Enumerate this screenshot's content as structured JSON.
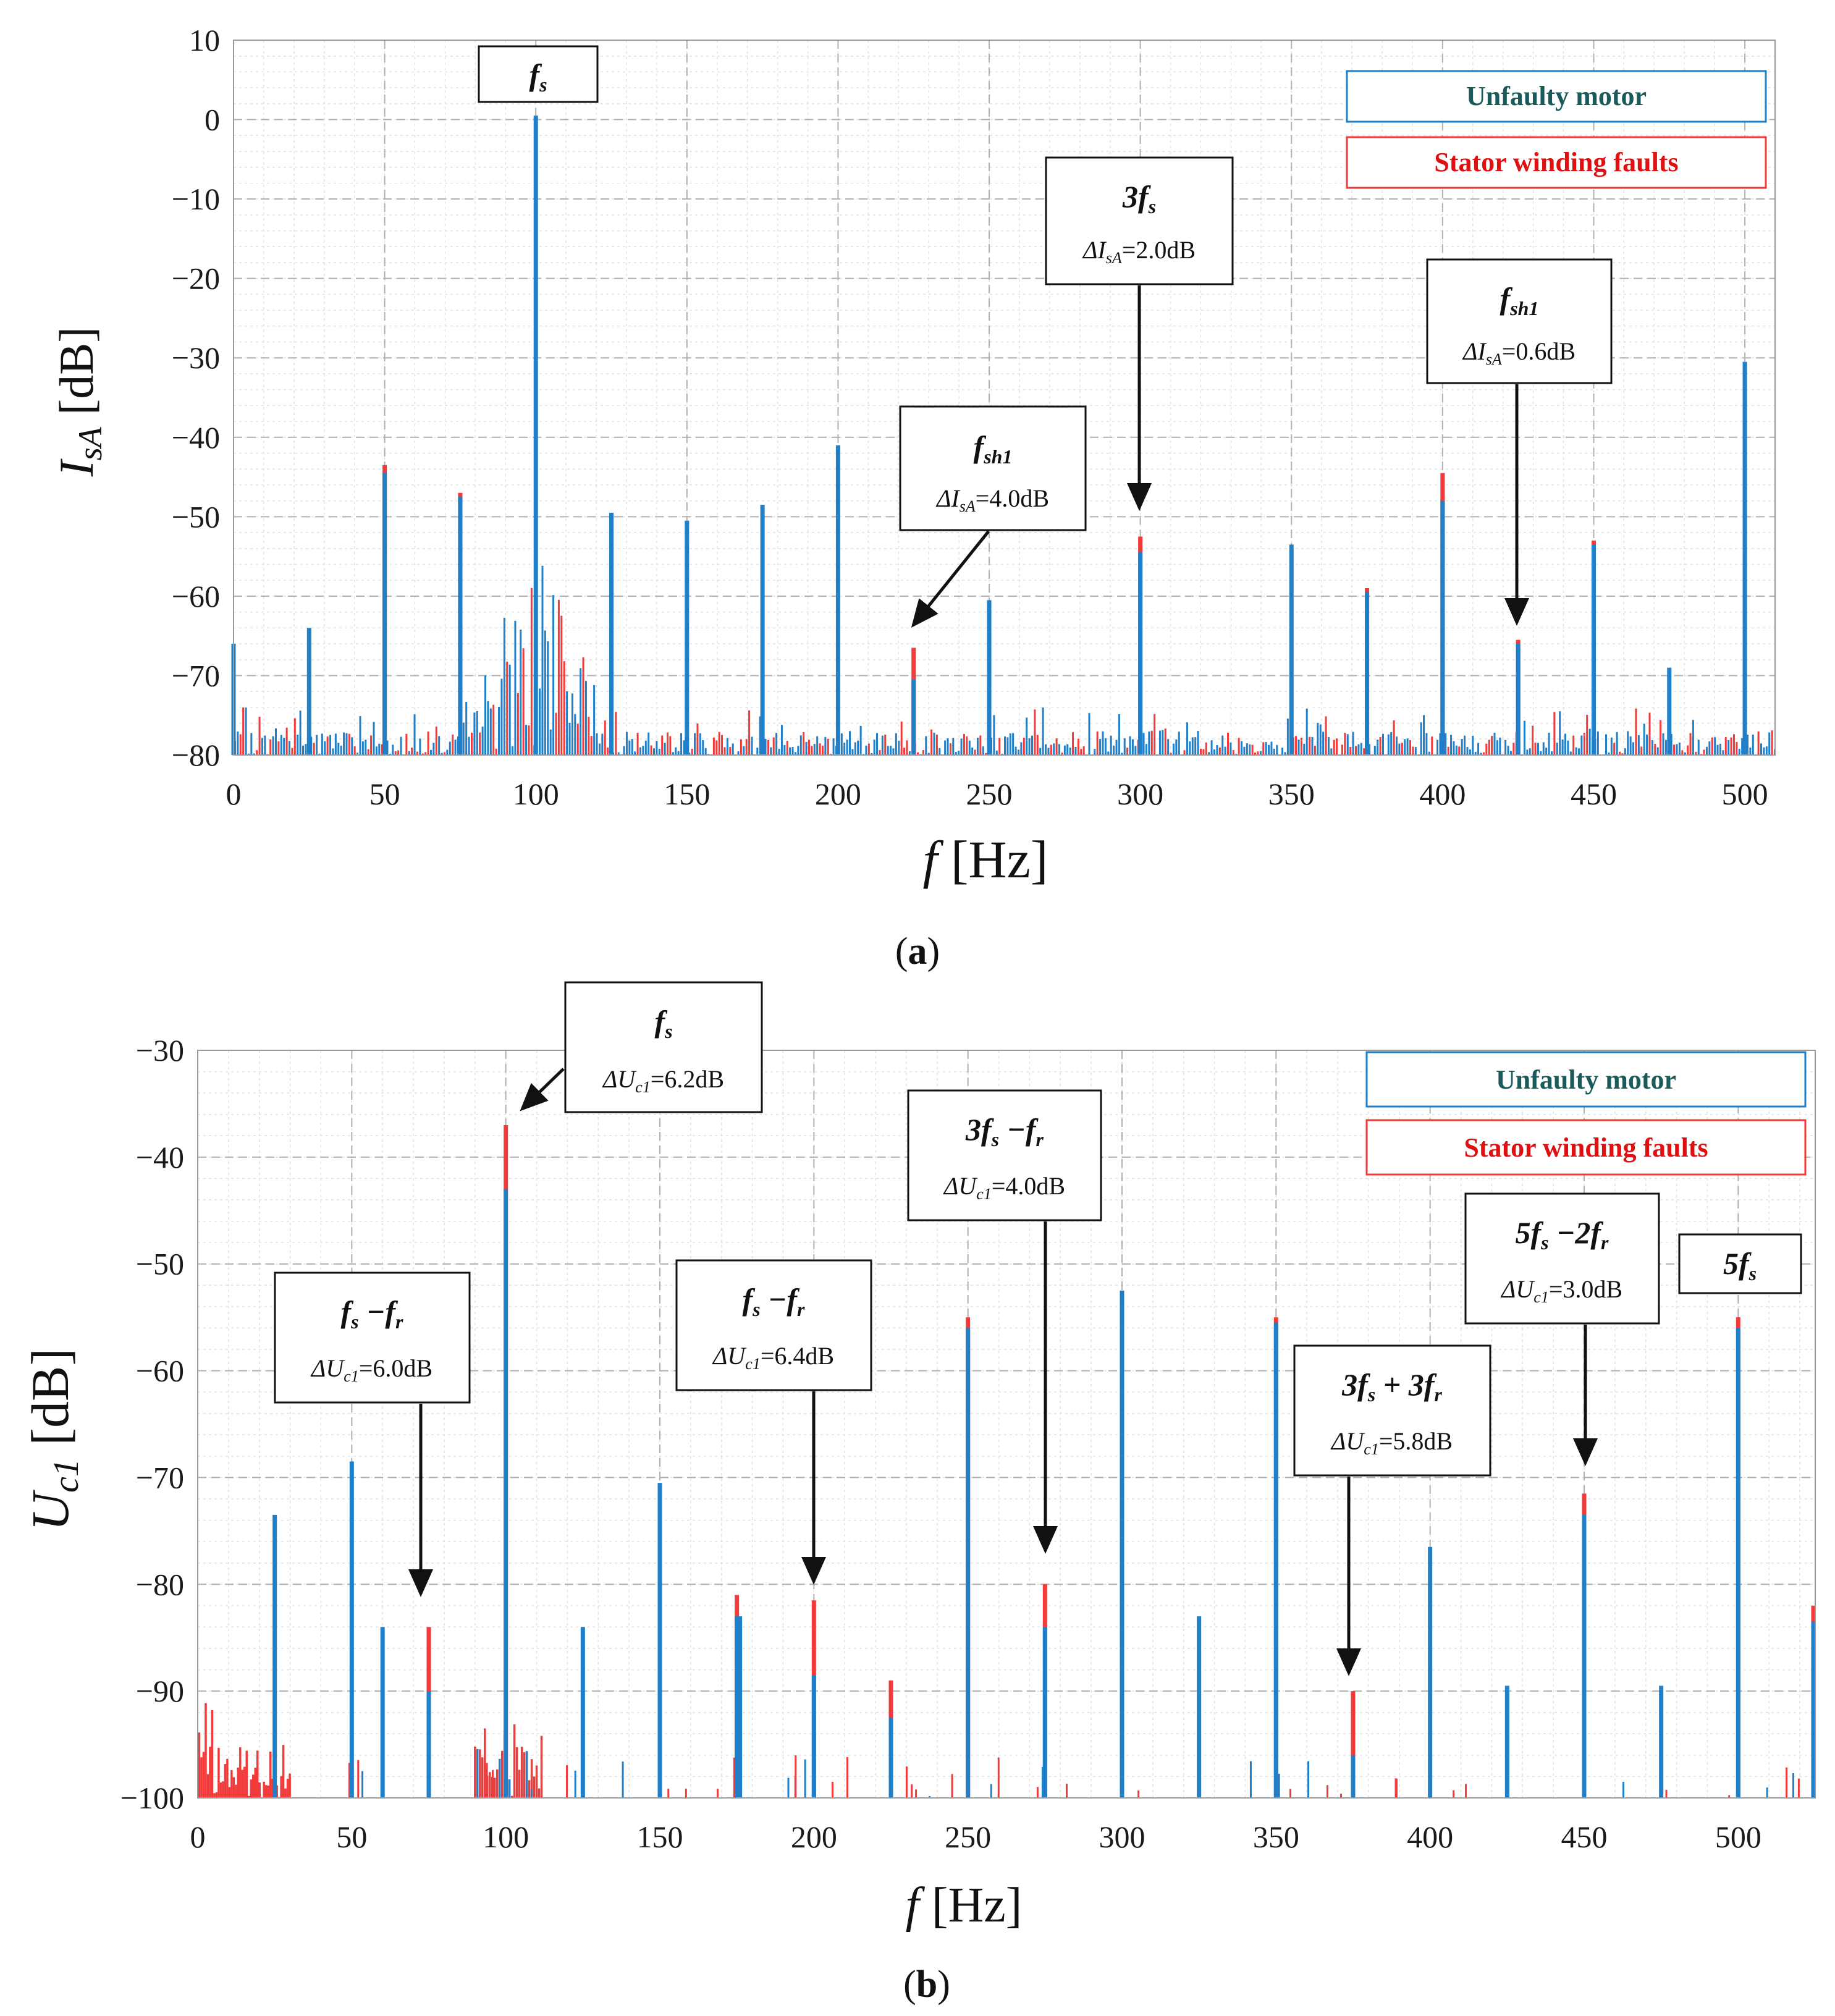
{
  "colors": {
    "unfaulty": "#1f7fc8",
    "faulty": "#f23a3a",
    "legend_unfaulty_text": "#1a5a5a",
    "legend_faulty_text": "#e01010",
    "grid": "#bdbdbd"
  },
  "chart_data": [
    {
      "id": "a",
      "type": "bar",
      "caption_open": "(",
      "caption_letter": "a",
      "caption_close": ")",
      "ylabel_main": "I",
      "ylabel_sub": "sA",
      "ylabel_unit": " [dB]",
      "xlabel_main": "f",
      "xlabel_unit": " [Hz]",
      "xlim": [
        0,
        510
      ],
      "ylim": [
        -80,
        10
      ],
      "xticks": [
        0,
        50,
        100,
        150,
        200,
        250,
        300,
        350,
        400,
        450,
        500
      ],
      "xticklabels": [
        "0",
        "50",
        "100",
        "150",
        "200",
        "250",
        "300",
        "350",
        "400",
        "450",
        "500"
      ],
      "yticks": [
        10,
        0,
        -10,
        -20,
        -30,
        -40,
        -50,
        -60,
        -70,
        -80
      ],
      "yticklabels": [
        "10",
        "0",
        "−10",
        "−20",
        "−30",
        "−40",
        "−50",
        "−60",
        "−70",
        "−80"
      ],
      "legend": {
        "unfaulty": "Unfaulty motor",
        "faulty": "Stator winding faults"
      },
      "series": [
        {
          "name": "Unfaulty motor",
          "x": [
            0,
            25,
            50,
            75,
            100,
            125,
            150,
            175,
            200,
            225,
            250,
            300,
            350,
            375,
            400,
            425,
            450,
            475,
            500
          ],
          "values": [
            -66,
            -64,
            -44.5,
            -47.5,
            0.5,
            -49.5,
            -50.5,
            -48.5,
            -41,
            -70.5,
            -60.5,
            -54.5,
            -53.5,
            -59.5,
            -48,
            -66,
            -53.5,
            -69,
            -30.5
          ]
        },
        {
          "name": "Stator winding faults",
          "x": [
            50,
            75,
            225,
            300,
            375,
            400,
            425,
            450
          ],
          "values": [
            -43.5,
            -47,
            -66.5,
            -52.5,
            -59,
            -44.5,
            -65.5,
            -53
          ]
        }
      ],
      "annotations": [
        {
          "key": "fs",
          "title": "f",
          "title_sub": "s",
          "delta": ""
        },
        {
          "key": "3fs",
          "title": "3f",
          "title_sub": "s",
          "delta_pre": "ΔI",
          "delta_sub": "sA",
          "delta_val": "=2.0dB"
        },
        {
          "key": "fsh1_a",
          "title": "f",
          "title_sub": "sh1",
          "delta_pre": "ΔI",
          "delta_sub": "sA",
          "delta_val": "=4.0dB"
        },
        {
          "key": "fsh1_b",
          "title": "f",
          "title_sub": "sh1",
          "delta_pre": "ΔI",
          "delta_sub": "sA",
          "delta_val": "=0.6dB"
        }
      ]
    },
    {
      "id": "b",
      "type": "bar",
      "caption_open": "(",
      "caption_letter": "b",
      "caption_close": ")",
      "ylabel_main": "U",
      "ylabel_sub": "c1",
      "ylabel_unit": " [dB]",
      "xlabel_main": "f",
      "xlabel_unit": "  [Hz]",
      "xlim": [
        0,
        525
      ],
      "ylim": [
        -100,
        -30
      ],
      "xticks": [
        0,
        50,
        100,
        150,
        200,
        250,
        300,
        350,
        400,
        450,
        500
      ],
      "xticklabels": [
        "0",
        "50",
        "100",
        "150",
        "200",
        "250",
        "300",
        "350",
        "400",
        "450",
        "500"
      ],
      "yticks": [
        -30,
        -40,
        -50,
        -60,
        -70,
        -80,
        -90,
        -100
      ],
      "yticklabels": [
        "−30",
        "−40",
        "−50",
        "−60",
        "−70",
        "−80",
        "−90",
        "−100"
      ],
      "legend": {
        "unfaulty": "Unfaulty motor",
        "faulty": "Stator winding faults"
      },
      "series": [
        {
          "name": "Unfaulty motor",
          "x": [
            25,
            50,
            60,
            75,
            100,
            125,
            150,
            175,
            176,
            200,
            225,
            250,
            275,
            300,
            325,
            350,
            375,
            400,
            425,
            450,
            475,
            500,
            525
          ],
          "values": [
            -73.5,
            -68.5,
            -84,
            -90,
            -43,
            -84,
            -70.5,
            -83,
            -83,
            -88.5,
            -92.5,
            -56,
            -84,
            -52.5,
            -83,
            -55.5,
            -96,
            -76.5,
            -89.5,
            -73.5,
            -89.5,
            -56,
            -83.5
          ]
        },
        {
          "name": "Stator winding faults",
          "x": [
            75,
            100,
            175,
            200,
            225,
            250,
            275,
            350,
            375,
            450,
            500,
            525
          ],
          "values": [
            -84,
            -37,
            -81,
            -81.5,
            -89,
            -55,
            -80,
            -55,
            -90,
            -71.5,
            -55,
            -82
          ]
        }
      ],
      "annotations": [
        {
          "key": "fs",
          "title": "f",
          "title_sub": "s",
          "delta_pre": "ΔU",
          "delta_sub": "c1",
          "delta_val": "=6.2dB"
        },
        {
          "key": "fs_fr_1",
          "title": "f",
          "title_sub": "s",
          "title_rest": " −f",
          "title_sub2": "r",
          "delta_pre": "ΔU",
          "delta_sub": "c1",
          "delta_val": "=6.0dB"
        },
        {
          "key": "fs_fr_2",
          "title": "f",
          "title_sub": "s",
          "title_rest": " −f",
          "title_sub2": "r",
          "delta_pre": "ΔU",
          "delta_sub": "c1",
          "delta_val": "=6.4dB"
        },
        {
          "key": "3fs_fr",
          "title": "3f",
          "title_sub": "s",
          "title_rest": " −f",
          "title_sub2": "r",
          "delta_pre": "ΔU",
          "delta_sub": "c1",
          "delta_val": "=4.0dB"
        },
        {
          "key": "3fs_3fr",
          "title": "3f",
          "title_sub": "s",
          "title_rest": " + 3f",
          "title_sub2": "r",
          "delta_pre": "ΔU",
          "delta_sub": "c1",
          "delta_val": "=5.8dB"
        },
        {
          "key": "5fs_2fr",
          "title": "5f",
          "title_sub": "s",
          "title_rest": " −2f",
          "title_sub2": "r",
          "delta_pre": "ΔU",
          "delta_sub": "c1",
          "delta_val": "=3.0dB"
        },
        {
          "key": "5fs",
          "title": "5f",
          "title_sub": "s",
          "delta": ""
        }
      ]
    }
  ]
}
